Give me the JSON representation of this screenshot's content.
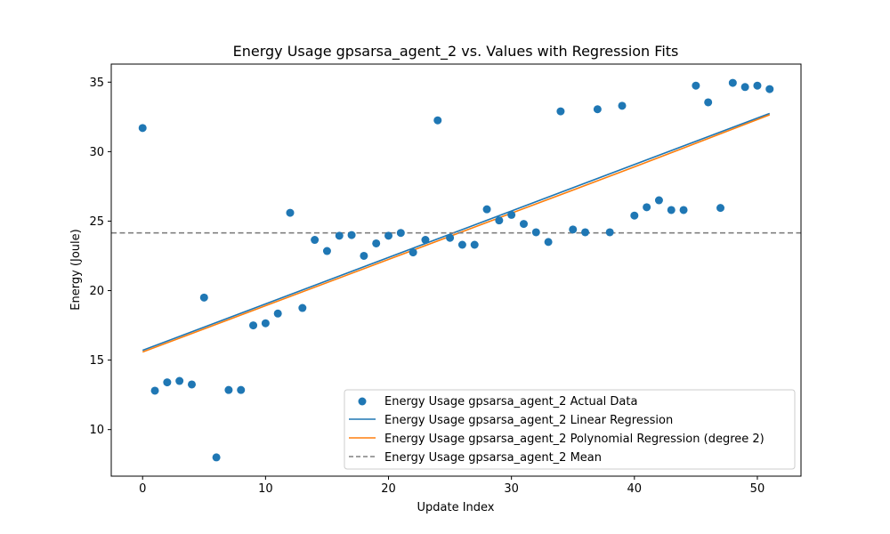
{
  "chart_data": {
    "type": "scatter",
    "title": "Energy Usage gpsarsa_agent_2 vs. Values with Regression Fits",
    "xlabel": "Update Index",
    "ylabel": "Energy (Joule)",
    "xlim": [
      -2.55,
      53.55
    ],
    "ylim": [
      6.65,
      36.3
    ],
    "x_ticks": [
      0,
      10,
      20,
      30,
      40,
      50
    ],
    "y_ticks": [
      10,
      15,
      20,
      25,
      30,
      35
    ],
    "grid": false,
    "legend_position": "lower-right",
    "series": [
      {
        "name": "Energy Usage gpsarsa_agent_2 Actual Data",
        "kind": "scatter",
        "color": "#1f77b4",
        "points": [
          [
            0,
            31.7
          ],
          [
            1,
            12.8
          ],
          [
            2,
            13.4
          ],
          [
            3,
            13.5
          ],
          [
            4,
            13.25
          ],
          [
            5,
            19.5
          ],
          [
            6,
            8.0
          ],
          [
            7,
            12.85
          ],
          [
            8,
            12.85
          ],
          [
            9,
            17.5
          ],
          [
            10,
            17.65
          ],
          [
            11,
            18.35
          ],
          [
            12,
            25.6
          ],
          [
            13,
            18.75
          ],
          [
            14,
            23.65
          ],
          [
            15,
            22.85
          ],
          [
            16,
            23.95
          ],
          [
            17,
            24.0
          ],
          [
            18,
            22.5
          ],
          [
            19,
            23.4
          ],
          [
            20,
            23.95
          ],
          [
            21,
            24.15
          ],
          [
            22,
            22.75
          ],
          [
            23,
            23.65
          ],
          [
            24,
            32.25
          ],
          [
            25,
            23.8
          ],
          [
            26,
            23.3
          ],
          [
            27,
            23.3
          ],
          [
            28,
            25.85
          ],
          [
            29,
            25.05
          ],
          [
            30,
            25.45
          ],
          [
            31,
            24.8
          ],
          [
            32,
            24.2
          ],
          [
            33,
            23.5
          ],
          [
            34,
            32.9
          ],
          [
            35,
            24.4
          ],
          [
            36,
            24.2
          ],
          [
            37,
            33.05
          ],
          [
            38,
            24.2
          ],
          [
            39,
            33.3
          ],
          [
            40,
            25.4
          ],
          [
            41,
            26.0
          ],
          [
            42,
            26.5
          ],
          [
            43,
            25.8
          ],
          [
            44,
            25.8
          ],
          [
            45,
            34.75
          ],
          [
            46,
            33.55
          ],
          [
            47,
            25.95
          ],
          [
            48,
            34.95
          ],
          [
            49,
            34.65
          ],
          [
            50,
            34.75
          ],
          [
            51,
            34.5
          ]
        ]
      },
      {
        "name": "Energy Usage gpsarsa_agent_2 Linear Regression",
        "kind": "line",
        "color": "#1f77b4",
        "x": [
          0,
          51
        ],
        "y": [
          15.7,
          32.75
        ]
      },
      {
        "name": "Energy Usage gpsarsa_agent_2 Polynomial Regression (degree 2)",
        "kind": "line",
        "color": "#ff7f0e",
        "x": [
          0,
          10,
          20,
          30,
          40,
          51
        ],
        "y": [
          15.58,
          18.91,
          22.24,
          25.57,
          28.9,
          32.65
        ]
      },
      {
        "name": "Energy Usage gpsarsa_agent_2 Mean",
        "kind": "hline",
        "color": "#808080",
        "y": 24.15
      }
    ]
  }
}
